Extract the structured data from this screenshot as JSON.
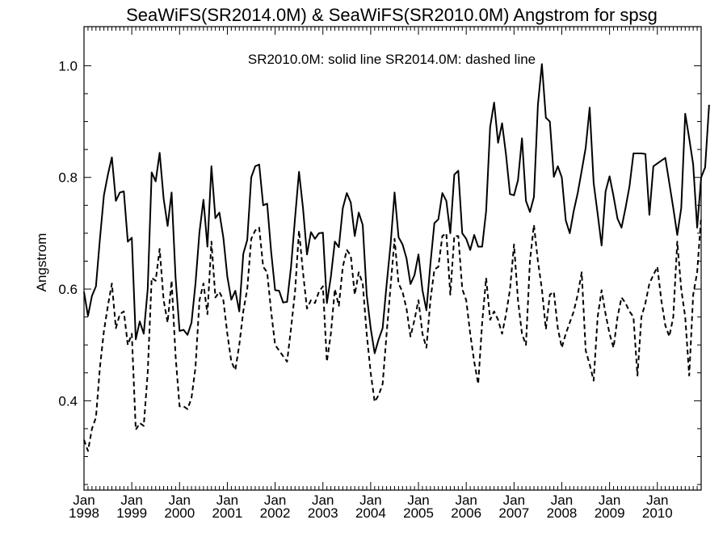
{
  "chart_data": {
    "type": "line",
    "title": "SeaWiFS(SR2014.0M) & SeaWiFS(SR2010.0M)  Angstrom for spsg",
    "annotation": "SR2010.0M: solid line   SR2014.0M: dashed line",
    "xlabel": "",
    "ylabel": "Angstrom",
    "ylim": [
      0.24,
      1.07
    ],
    "xlim": [
      "1998-01",
      "2010-12"
    ],
    "y_ticks": [
      "0.4",
      "0.6",
      "0.8",
      "1.0"
    ],
    "x_ticks": [
      {
        "month": "Jan",
        "year": "1998"
      },
      {
        "month": "Jan",
        "year": "1999"
      },
      {
        "month": "Jan",
        "year": "2000"
      },
      {
        "month": "Jan",
        "year": "2001"
      },
      {
        "month": "Jan",
        "year": "2002"
      },
      {
        "month": "Jan",
        "year": "2003"
      },
      {
        "month": "Jan",
        "year": "2004"
      },
      {
        "month": "Jan",
        "year": "2005"
      },
      {
        "month": "Jan",
        "year": "2006"
      },
      {
        "month": "Jan",
        "year": "2007"
      },
      {
        "month": "Jan",
        "year": "2008"
      },
      {
        "month": "Jan",
        "year": "2009"
      },
      {
        "month": "Jan",
        "year": "2010"
      }
    ],
    "grid": false,
    "series": [
      {
        "style": "solid",
        "start": "1998-01",
        "values": [
          0.595,
          0.552,
          0.588,
          0.605,
          0.69,
          0.768,
          0.805,
          0.836,
          0.758,
          0.773,
          0.775,
          0.685,
          0.692,
          0.51,
          0.542,
          0.52,
          0.6,
          0.809,
          0.793,
          0.844,
          0.762,
          0.713,
          0.773,
          0.62,
          0.525,
          0.527,
          0.518,
          0.54,
          0.61,
          0.702,
          0.76,
          0.676,
          0.82,
          0.727,
          0.737,
          0.692,
          0.622,
          0.581,
          0.597,
          0.56,
          0.663,
          0.688,
          0.8,
          0.82,
          0.823,
          0.75,
          0.753,
          0.667,
          0.598,
          0.597,
          0.576,
          0.577,
          0.64,
          0.727,
          0.81,
          0.745,
          0.662,
          0.702,
          0.69,
          0.7,
          0.701,
          0.575,
          0.622,
          0.685,
          0.675,
          0.745,
          0.772,
          0.755,
          0.695,
          0.737,
          0.715,
          0.59,
          0.53,
          0.485,
          0.51,
          0.53,
          0.608,
          0.68,
          0.773,
          0.693,
          0.68,
          0.655,
          0.609,
          0.625,
          0.662,
          0.598,
          0.562,
          0.645,
          0.718,
          0.725,
          0.772,
          0.758,
          0.7,
          0.805,
          0.812,
          0.7,
          0.69,
          0.67,
          0.697,
          0.676,
          0.676,
          0.74,
          0.89,
          0.934,
          0.862,
          0.897,
          0.84,
          0.77,
          0.768,
          0.795,
          0.87,
          0.758,
          0.738,
          0.765,
          0.93,
          1.003,
          0.907,
          0.9,
          0.801,
          0.82,
          0.8,
          0.723,
          0.7,
          0.74,
          0.772,
          0.812,
          0.853,
          0.925,
          0.79,
          0.735,
          0.678,
          0.775,
          0.802,
          0.766,
          0.726,
          0.71,
          0.745,
          0.784,
          0.843,
          0.843,
          0.843,
          0.842,
          0.733,
          0.82,
          0.825,
          0.83,
          0.835,
          0.79,
          0.745,
          0.697,
          0.745,
          0.914,
          0.87,
          0.823,
          0.71,
          0.8,
          0.818,
          0.93
        ]
      },
      {
        "style": "dashed",
        "start": "1998-01",
        "values": [
          0.33,
          0.31,
          0.35,
          0.37,
          0.46,
          0.525,
          0.57,
          0.61,
          0.53,
          0.555,
          0.56,
          0.5,
          0.52,
          0.348,
          0.36,
          0.355,
          0.45,
          0.62,
          0.615,
          0.672,
          0.58,
          0.54,
          0.615,
          0.48,
          0.39,
          0.39,
          0.385,
          0.405,
          0.46,
          0.58,
          0.61,
          0.555,
          0.685,
          0.585,
          0.595,
          0.58,
          0.52,
          0.47,
          0.455,
          0.5,
          0.56,
          0.6,
          0.69,
          0.705,
          0.71,
          0.64,
          0.63,
          0.56,
          0.5,
          0.49,
          0.48,
          0.47,
          0.53,
          0.595,
          0.705,
          0.63,
          0.565,
          0.58,
          0.575,
          0.595,
          0.605,
          0.47,
          0.52,
          0.6,
          0.57,
          0.64,
          0.67,
          0.66,
          0.59,
          0.63,
          0.61,
          0.52,
          0.45,
          0.398,
          0.41,
          0.43,
          0.52,
          0.605,
          0.69,
          0.61,
          0.595,
          0.565,
          0.515,
          0.545,
          0.58,
          0.52,
          0.495,
          0.58,
          0.635,
          0.64,
          0.695,
          0.7,
          0.59,
          0.695,
          0.695,
          0.6,
          0.58,
          0.52,
          0.47,
          0.43,
          0.54,
          0.62,
          0.545,
          0.56,
          0.545,
          0.52,
          0.555,
          0.6,
          0.68,
          0.58,
          0.52,
          0.5,
          0.65,
          0.715,
          0.65,
          0.6,
          0.528,
          0.59,
          0.595,
          0.53,
          0.495,
          0.52,
          0.54,
          0.56,
          0.59,
          0.63,
          0.49,
          0.465,
          0.436,
          0.55,
          0.598,
          0.555,
          0.52,
          0.495,
          0.55,
          0.585,
          0.575,
          0.56,
          0.55,
          0.445,
          0.55,
          0.575,
          0.61,
          0.625,
          0.64,
          0.58,
          0.535,
          0.515,
          0.55,
          0.685,
          0.6,
          0.55,
          0.445,
          0.59,
          0.63,
          0.73
        ]
      }
    ]
  }
}
